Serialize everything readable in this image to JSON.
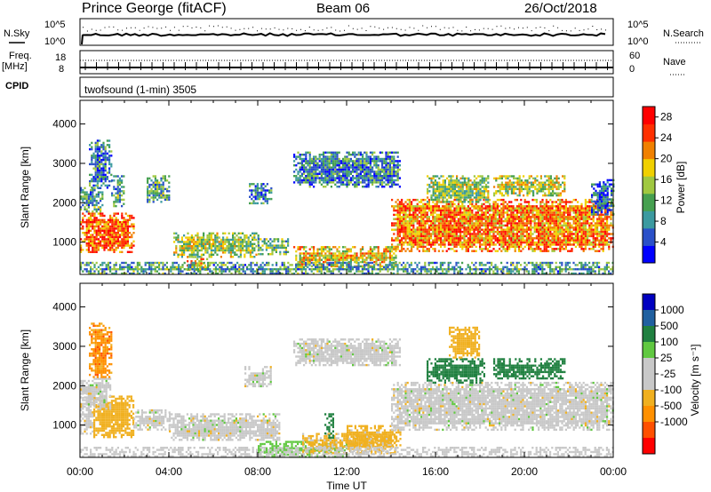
{
  "header": {
    "station": "Prince George (fitACF)",
    "beam": "Beam 06",
    "date": "26/Oct/2018"
  },
  "strip_panels": {
    "nsky_label": "N.Sky",
    "nsky_ticks": [
      "10^5",
      "10^0"
    ],
    "nsearch_label": "N.Search",
    "nsearch_ticks": [
      "10^5",
      "10^0"
    ],
    "freq_label": "Freq.",
    "freq_unit": "[MHz]",
    "freq_ticks": [
      "18",
      "8"
    ],
    "nave_label": "Nave",
    "nave_ticks": [
      "60",
      "0"
    ],
    "cpid_label": "CPID",
    "cpid_text": "twofsound (1-min) 3505"
  },
  "colors": {
    "power_scale": [
      "#0000ff",
      "#2a50c8",
      "#3c9aa0",
      "#46a050",
      "#a0c840",
      "#f0d000",
      "#f08000",
      "#ff3000",
      "#ff0000"
    ],
    "velocity_scale": [
      "#ff0000",
      "#ff5000",
      "#ff9000",
      "#f0b020",
      "#c8c8c8",
      "#c8c8c8",
      "#60c840",
      "#208040",
      "#2060a0",
      "#0000c0"
    ],
    "ground_scatter": "#c8c8c8"
  },
  "chart_data": [
    {
      "type": "heatmap",
      "panel": "power",
      "xlabel": "Time UT",
      "ylabel": "Slant Range [km]",
      "xlim_hours": [
        0,
        24
      ],
      "ylim_km": [
        180,
        4600
      ],
      "y_ticks": [
        "1000",
        "2000",
        "3000",
        "4000"
      ],
      "x_ticks": [
        "00:00",
        "04:00",
        "08:00",
        "12:00",
        "16:00",
        "20:00",
        "00:00"
      ],
      "colorbar": {
        "label": "Power [dB]",
        "ticks": [
          "4",
          "8",
          "12",
          "16",
          "20",
          "24",
          "28"
        ],
        "range": [
          0,
          30
        ]
      },
      "echo_regions": [
        {
          "t0": 0.0,
          "t1": 2.4,
          "r0": 750,
          "r1": 1750,
          "level": 24
        },
        {
          "t0": 0.0,
          "t1": 1.0,
          "r0": 1800,
          "r1": 2400,
          "level": 10
        },
        {
          "t0": 0.4,
          "t1": 1.4,
          "r0": 2400,
          "r1": 3600,
          "level": 8
        },
        {
          "t0": 1.4,
          "t1": 2.0,
          "r0": 1900,
          "r1": 2700,
          "level": 10
        },
        {
          "t0": 3.0,
          "t1": 4.0,
          "r0": 2000,
          "r1": 2700,
          "level": 10
        },
        {
          "t0": 4.2,
          "t1": 8.0,
          "r0": 650,
          "r1": 1250,
          "level": 14
        },
        {
          "t0": 4.8,
          "t1": 5.8,
          "r0": 300,
          "r1": 650,
          "level": 20
        },
        {
          "t0": 8.0,
          "t1": 9.4,
          "r0": 700,
          "r1": 1100,
          "level": 12
        },
        {
          "t0": 9.6,
          "t1": 14.2,
          "r0": 400,
          "r1": 900,
          "level": 18
        },
        {
          "t0": 7.6,
          "t1": 8.6,
          "r0": 2000,
          "r1": 2500,
          "level": 8
        },
        {
          "t0": 9.6,
          "t1": 14.4,
          "r0": 2400,
          "r1": 3300,
          "level": 8
        },
        {
          "t0": 14.0,
          "t1": 24.0,
          "r0": 800,
          "r1": 2100,
          "level": 22
        },
        {
          "t0": 15.6,
          "t1": 18.4,
          "r0": 2000,
          "r1": 2700,
          "level": 14
        },
        {
          "t0": 18.6,
          "t1": 21.8,
          "r0": 2200,
          "r1": 2700,
          "level": 16
        },
        {
          "t0": 23.0,
          "t1": 24.0,
          "r0": 1700,
          "r1": 2600,
          "level": 6
        },
        {
          "t0": 0.0,
          "t1": 24.0,
          "r0": 180,
          "r1": 500,
          "level": 10
        }
      ]
    },
    {
      "type": "heatmap",
      "panel": "velocity",
      "xlabel": "Time UT",
      "ylabel": "Slant Range [km]",
      "xlim_hours": [
        0,
        24
      ],
      "ylim_km": [
        180,
        4600
      ],
      "y_ticks": [
        "1000",
        "2000",
        "3000",
        "4000"
      ],
      "x_ticks": [
        "00:00",
        "04:00",
        "08:00",
        "12:00",
        "16:00",
        "20:00",
        "00:00"
      ],
      "colorbar": {
        "label": "Velocity [m s⁻¹]",
        "ticks": [
          "1000",
          "500",
          "100",
          "25",
          "-25",
          "-100",
          "-500",
          "-1000"
        ]
      },
      "echo_regions": [
        {
          "t0": 0.0,
          "t1": 0.6,
          "r0": 800,
          "r1": 2000,
          "v": 0
        },
        {
          "t0": 0.6,
          "t1": 2.4,
          "r0": 700,
          "r1": 1750,
          "v": -300
        },
        {
          "t0": 0.0,
          "t1": 1.4,
          "r0": 1400,
          "r1": 2200,
          "v": 0
        },
        {
          "t0": 0.4,
          "t1": 1.4,
          "r0": 2200,
          "r1": 3600,
          "v": -700
        },
        {
          "t0": 2.4,
          "t1": 4.0,
          "r0": 900,
          "r1": 1400,
          "v": 0
        },
        {
          "t0": 4.0,
          "t1": 9.0,
          "r0": 600,
          "r1": 1300,
          "v": 0
        },
        {
          "t0": 8.0,
          "t1": 12.0,
          "r0": 200,
          "r1": 600,
          "v": 60
        },
        {
          "t0": 10.0,
          "t1": 14.2,
          "r0": 300,
          "r1": 800,
          "v": -150
        },
        {
          "t0": 12.0,
          "t1": 14.4,
          "r0": 500,
          "r1": 1000,
          "v": -200
        },
        {
          "t0": 11.0,
          "t1": 11.4,
          "r0": 700,
          "r1": 1300,
          "v": 300
        },
        {
          "t0": 7.4,
          "t1": 8.6,
          "r0": 2000,
          "r1": 2500,
          "v": 0
        },
        {
          "t0": 9.6,
          "t1": 14.4,
          "r0": 2500,
          "r1": 3200,
          "v": 0
        },
        {
          "t0": 14.0,
          "t1": 24.0,
          "r0": 900,
          "r1": 2100,
          "v": 0
        },
        {
          "t0": 15.6,
          "t1": 18.2,
          "r0": 2100,
          "r1": 2700,
          "v": 300
        },
        {
          "t0": 16.6,
          "t1": 18.0,
          "r0": 2700,
          "r1": 3500,
          "v": -300
        },
        {
          "t0": 18.6,
          "t1": 21.8,
          "r0": 2200,
          "r1": 2700,
          "v": 300
        },
        {
          "t0": 0.0,
          "t1": 24.0,
          "r0": 180,
          "r1": 450,
          "v": -50
        }
      ]
    }
  ]
}
